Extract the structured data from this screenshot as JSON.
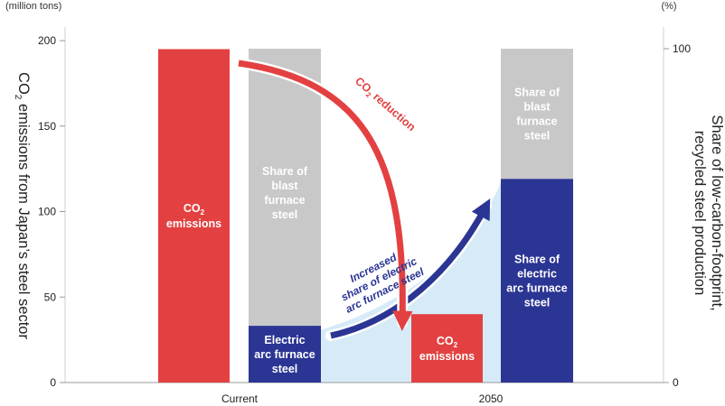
{
  "chart_data": {
    "type": "bar",
    "categories": [
      "Current",
      "2050"
    ],
    "left_axis": {
      "unit": "(million tons)",
      "label_main": "CO",
      "label_sub": "2",
      "label_rest": " emissions from Japan’s steel sector",
      "ylim": [
        0,
        200
      ],
      "ticks": [
        "0",
        "50",
        "100",
        "150",
        "200"
      ]
    },
    "right_axis": {
      "unit": "(%)",
      "label_line1": "Share of low-carbon-footprint,",
      "label_line2": "recycled steel production",
      "ylim": [
        0,
        100
      ],
      "ticks": [
        "0",
        "100"
      ]
    },
    "series": [
      {
        "name": "CO2 emissions",
        "axis": "left",
        "color": "#e34141",
        "values": [
          195,
          40
        ],
        "labels": [
          {
            "main": "CO",
            "sub": "2",
            "line2": "emissions"
          },
          {
            "main": "CO",
            "sub": "2",
            "line2": "emissions"
          }
        ]
      },
      {
        "name": "Electric arc furnace steel",
        "axis": "right",
        "color": "#2b3594",
        "values": [
          17,
          61
        ],
        "labels": [
          {
            "lines": [
              "Electric",
              "arc furnace",
              "steel"
            ]
          },
          {
            "lines": [
              "Share of",
              "electric",
              "arc furnace",
              "steel"
            ]
          }
        ]
      },
      {
        "name": "Blast furnace steel",
        "axis": "right",
        "color": "#c8c8c8",
        "values": [
          83,
          39
        ],
        "labels": [
          {
            "lines": [
              "Share of",
              "blast",
              "furnace",
              "steel"
            ]
          },
          {
            "lines": [
              "Share of",
              "blast",
              "furnace",
              "steel"
            ]
          }
        ]
      }
    ],
    "annotations": {
      "co2_reduction": {
        "main": "CO",
        "sub": "2",
        "rest": " reduction",
        "color": "#e34141"
      },
      "eaf_increase": {
        "lines": [
          "Increased",
          "share of electric",
          "arc furnace steel"
        ],
        "color": "#2b3594"
      }
    },
    "shaded_area_color": "#d6ebf7",
    "grid": false
  }
}
